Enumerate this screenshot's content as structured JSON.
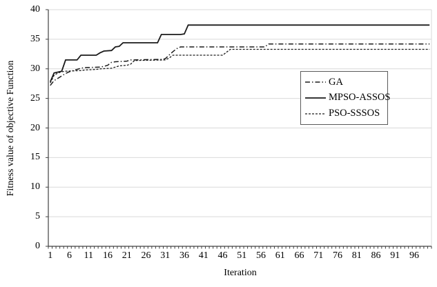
{
  "chart_data": {
    "type": "line",
    "title": "",
    "xlabel": "Iteration",
    "ylabel": "Fitness value of objective Function",
    "xlim": [
      1,
      100
    ],
    "ylim": [
      0,
      40
    ],
    "xticks": [
      1,
      6,
      11,
      16,
      21,
      26,
      31,
      36,
      41,
      46,
      51,
      56,
      61,
      66,
      71,
      76,
      81,
      86,
      91,
      96
    ],
    "yticks": [
      0,
      5,
      10,
      15,
      20,
      25,
      30,
      35,
      40
    ],
    "grid": "horizontal",
    "legend_position": "center-right-box",
    "colors": {
      "line": "#1a1a1a",
      "grid": "#d9d9d9",
      "axis": "#404040",
      "legend_border": "#595959"
    },
    "series": [
      {
        "name": "GA",
        "line_style": "dashdot",
        "points": [
          [
            1,
            27.2
          ],
          [
            2,
            28.0
          ],
          [
            3,
            28.4
          ],
          [
            4,
            28.8
          ],
          [
            5,
            29.2
          ],
          [
            6,
            29.5
          ],
          [
            7,
            29.7
          ],
          [
            8,
            29.9
          ],
          [
            9,
            30.1
          ],
          [
            10,
            30.2
          ],
          [
            14,
            30.3
          ],
          [
            15,
            30.4
          ],
          [
            16,
            30.6
          ],
          [
            17,
            31.1
          ],
          [
            18,
            31.2
          ],
          [
            21,
            31.3
          ],
          [
            22,
            31.5
          ],
          [
            30,
            31.6
          ],
          [
            31,
            31.7
          ],
          [
            32,
            32.3
          ],
          [
            33,
            32.9
          ],
          [
            34,
            33.4
          ],
          [
            35,
            33.7
          ],
          [
            57,
            33.7
          ],
          [
            58,
            34.2
          ],
          [
            100,
            34.2
          ]
        ]
      },
      {
        "name": "MPSO-ASSOS",
        "line_style": "solid",
        "points": [
          [
            1,
            27.8
          ],
          [
            2,
            29.3
          ],
          [
            4,
            29.6
          ],
          [
            5,
            31.5
          ],
          [
            8,
            31.5
          ],
          [
            9,
            32.3
          ],
          [
            13,
            32.3
          ],
          [
            14,
            32.7
          ],
          [
            15,
            33.0
          ],
          [
            17,
            33.1
          ],
          [
            18,
            33.7
          ],
          [
            19,
            33.8
          ],
          [
            20,
            34.4
          ],
          [
            29,
            34.4
          ],
          [
            30,
            35.8
          ],
          [
            35,
            35.8
          ],
          [
            36,
            35.9
          ],
          [
            37,
            37.4
          ],
          [
            100,
            37.4
          ]
        ]
      },
      {
        "name": "PSO-SSSOS",
        "line_style": "dashed",
        "points": [
          [
            1,
            27.6
          ],
          [
            2,
            28.9
          ],
          [
            3,
            29.3
          ],
          [
            4,
            29.5
          ],
          [
            5,
            29.6
          ],
          [
            9,
            29.7
          ],
          [
            10,
            29.8
          ],
          [
            13,
            29.9
          ],
          [
            14,
            30.0
          ],
          [
            17,
            30.1
          ],
          [
            18,
            30.3
          ],
          [
            19,
            30.5
          ],
          [
            21,
            30.6
          ],
          [
            22,
            30.8
          ],
          [
            23,
            31.4
          ],
          [
            31,
            31.5
          ],
          [
            32,
            31.8
          ],
          [
            33,
            32.3
          ],
          [
            46,
            32.3
          ],
          [
            47,
            32.8
          ],
          [
            48,
            33.3
          ],
          [
            100,
            33.3
          ]
        ]
      }
    ]
  }
}
